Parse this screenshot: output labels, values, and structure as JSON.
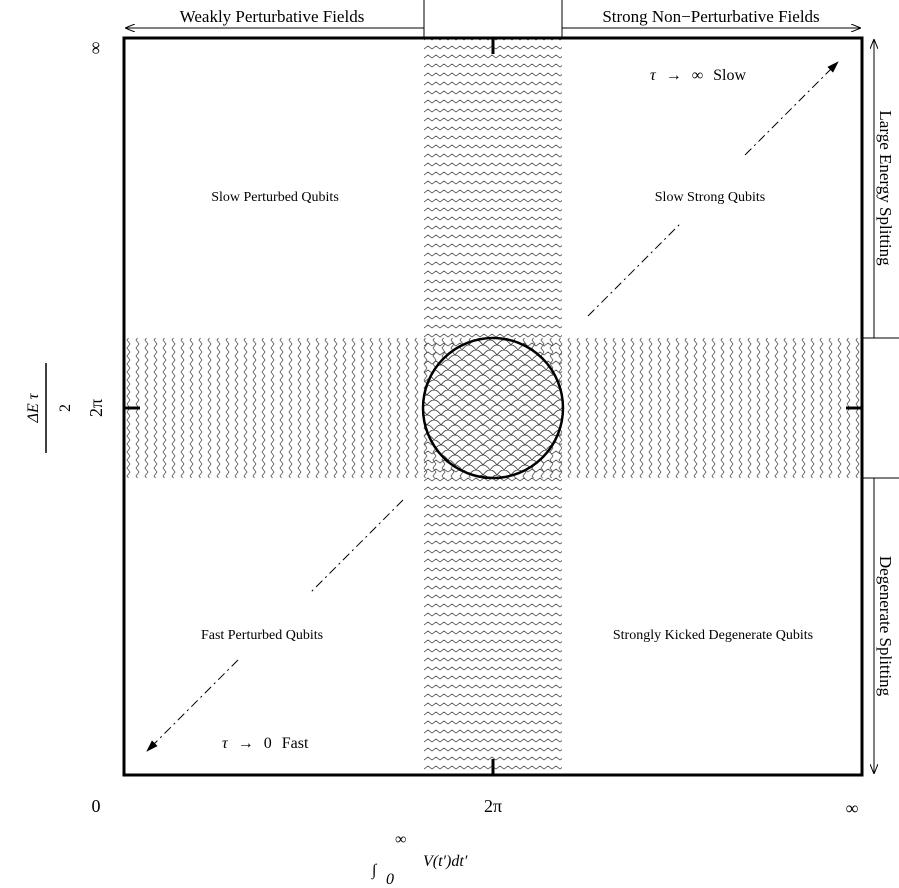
{
  "top_left_header": "Weakly Perturbative Fields",
  "top_right_header": "Strong Non−Perturbative Fields",
  "right_upper_label": "Large Energy Splitting",
  "right_lower_label": "Degenerate Splitting",
  "regions": {
    "top_left": "Slow Perturbed Qubits",
    "top_right": "Slow Strong Qubits",
    "bottom_left": "Fast Perturbed Qubits",
    "bottom_right": "Strongly Kicked Degenerate Qubits"
  },
  "arrows": {
    "slow": {
      "tau": "τ",
      "arrow": "→",
      "limit": "∞",
      "word": "Slow"
    },
    "fast": {
      "tau": "τ",
      "arrow": "→",
      "limit": "0",
      "word": "Fast"
    }
  },
  "x_ticks": {
    "origin": "0",
    "mid": "2π",
    "end": "∞"
  },
  "y_ticks": {
    "mid": "2π",
    "top": "∞"
  },
  "x_axis_label": {
    "integral": "∫",
    "upper": "∞",
    "lower": "0",
    "body": "V(t′)dt′"
  },
  "y_axis_label": {
    "numerator": "ΔE τ",
    "denominator": "2"
  }
}
